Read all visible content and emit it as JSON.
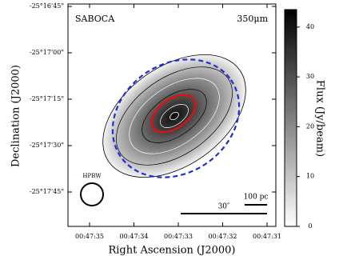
{
  "chart_data": {
    "type": "image",
    "title": "SABOCA",
    "subtitle": "350μm",
    "x_label": "Right Ascension (J2000)",
    "y_label": "Declination (J2000)",
    "x_tick_labels": [
      "00:47:35",
      "00:47:34",
      "00:47:33",
      "00:47:32",
      "00:47:31"
    ],
    "y_tick_labels": [
      "-25°16'45\"",
      "-25°17'00\"",
      "-25°17'15\"",
      "-25°17'30\"",
      "-25°17'45\""
    ],
    "beam_label": "HPBW",
    "scale_bar_labels": [
      "100 pc",
      "30″"
    ],
    "colorbar": {
      "label": "Flux (Jy/beam)",
      "clim": [
        0,
        43.5
      ],
      "cticks": [
        0,
        10,
        20,
        30,
        40
      ],
      "cmap": "gray_r"
    }
  }
}
